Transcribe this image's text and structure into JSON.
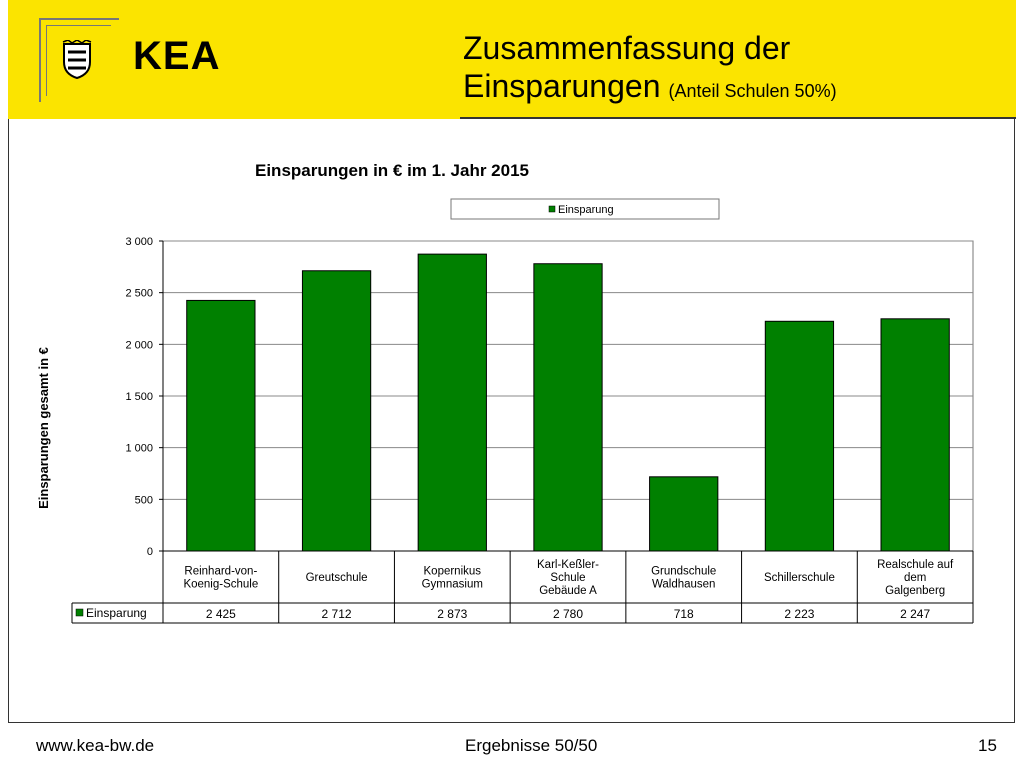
{
  "header": {
    "brand": "KEA",
    "title_line1": "Zusammenfassung der",
    "title_line2": "Einsparungen",
    "title_sub": "(Anteil Schulen 50%)"
  },
  "footer": {
    "website": "www.kea-bw.de",
    "center": "Ergebnisse 50/50",
    "page_number": "15"
  },
  "colors": {
    "header_bg": "#fbe400",
    "bar": "#008000"
  },
  "chart_data": {
    "type": "bar",
    "title": "Einsparungen in € im 1. Jahr 2015",
    "ylabel": "Einsparungen gesamt in €",
    "xlabel": "",
    "ylim": [
      0,
      3000
    ],
    "y_ticks": [
      0,
      500,
      1000,
      1500,
      2000,
      2500,
      3000
    ],
    "y_tick_labels": [
      "0",
      "500",
      "1 000",
      "1 500",
      "2 000",
      "2 500",
      "3 000"
    ],
    "grid": true,
    "legend_position": "top",
    "categories": [
      [
        "Reinhard-von-",
        "Koenig-Schule"
      ],
      [
        "Greutschule"
      ],
      [
        "Kopernikus",
        "Gymnasium"
      ],
      [
        "Karl-Keßler-",
        "Schule",
        "Gebäude A"
      ],
      [
        "Grundschule",
        "Waldhausen"
      ],
      [
        "Schillerschule"
      ],
      [
        "Realschule auf",
        "dem",
        "Galgenberg"
      ]
    ],
    "series": [
      {
        "name": "Einsparung",
        "color": "#008000",
        "values": [
          2425,
          2712,
          2873,
          2780,
          718,
          2223,
          2247
        ],
        "value_labels": [
          "2 425",
          "2 712",
          "2 873",
          "2 780",
          "718",
          "2 223",
          "2 247"
        ]
      }
    ]
  }
}
